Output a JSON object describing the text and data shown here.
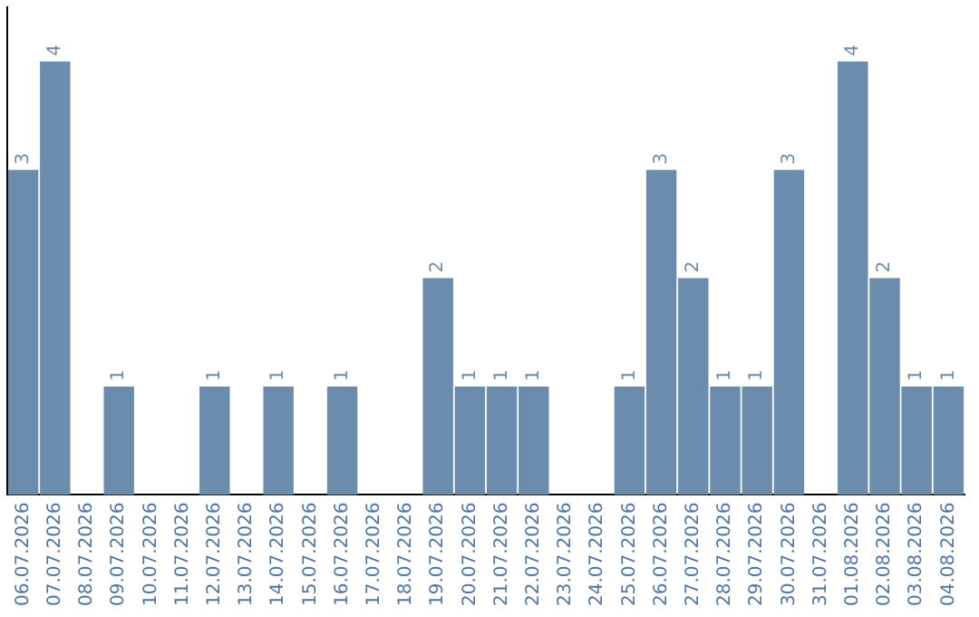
{
  "chart_data": {
    "type": "bar",
    "categories": [
      "06.07.2026",
      "07.07.2026",
      "08.07.2026",
      "09.07.2026",
      "10.07.2026",
      "11.07.2026",
      "12.07.2026",
      "13.07.2026",
      "14.07.2026",
      "15.07.2026",
      "16.07.2026",
      "17.07.2026",
      "18.07.2026",
      "19.07.2026",
      "20.07.2026",
      "21.07.2026",
      "22.07.2026",
      "23.07.2026",
      "24.07.2026",
      "25.07.2026",
      "26.07.2026",
      "27.07.2026",
      "28.07.2026",
      "29.07.2026",
      "30.07.2026",
      "31.07.2026",
      "01.08.2026",
      "02.08.2026",
      "03.08.2026",
      "04.08.2026"
    ],
    "values": [
      3,
      4,
      0,
      1,
      0,
      0,
      1,
      0,
      1,
      0,
      1,
      0,
      0,
      2,
      1,
      1,
      1,
      0,
      0,
      1,
      3,
      2,
      1,
      1,
      3,
      0,
      4,
      2,
      1,
      1
    ],
    "value_labels": [
      "3",
      "4",
      null,
      "1",
      null,
      null,
      "1",
      null,
      "1",
      null,
      "1",
      null,
      null,
      "2",
      "1",
      "1",
      "1",
      null,
      null,
      "1",
      "3",
      "2",
      "1",
      "1",
      "3",
      null,
      "4",
      "2",
      "1",
      "1"
    ],
    "color": "#6c8cad",
    "tick_labels": "x",
    "grid": false,
    "legend": false
  }
}
